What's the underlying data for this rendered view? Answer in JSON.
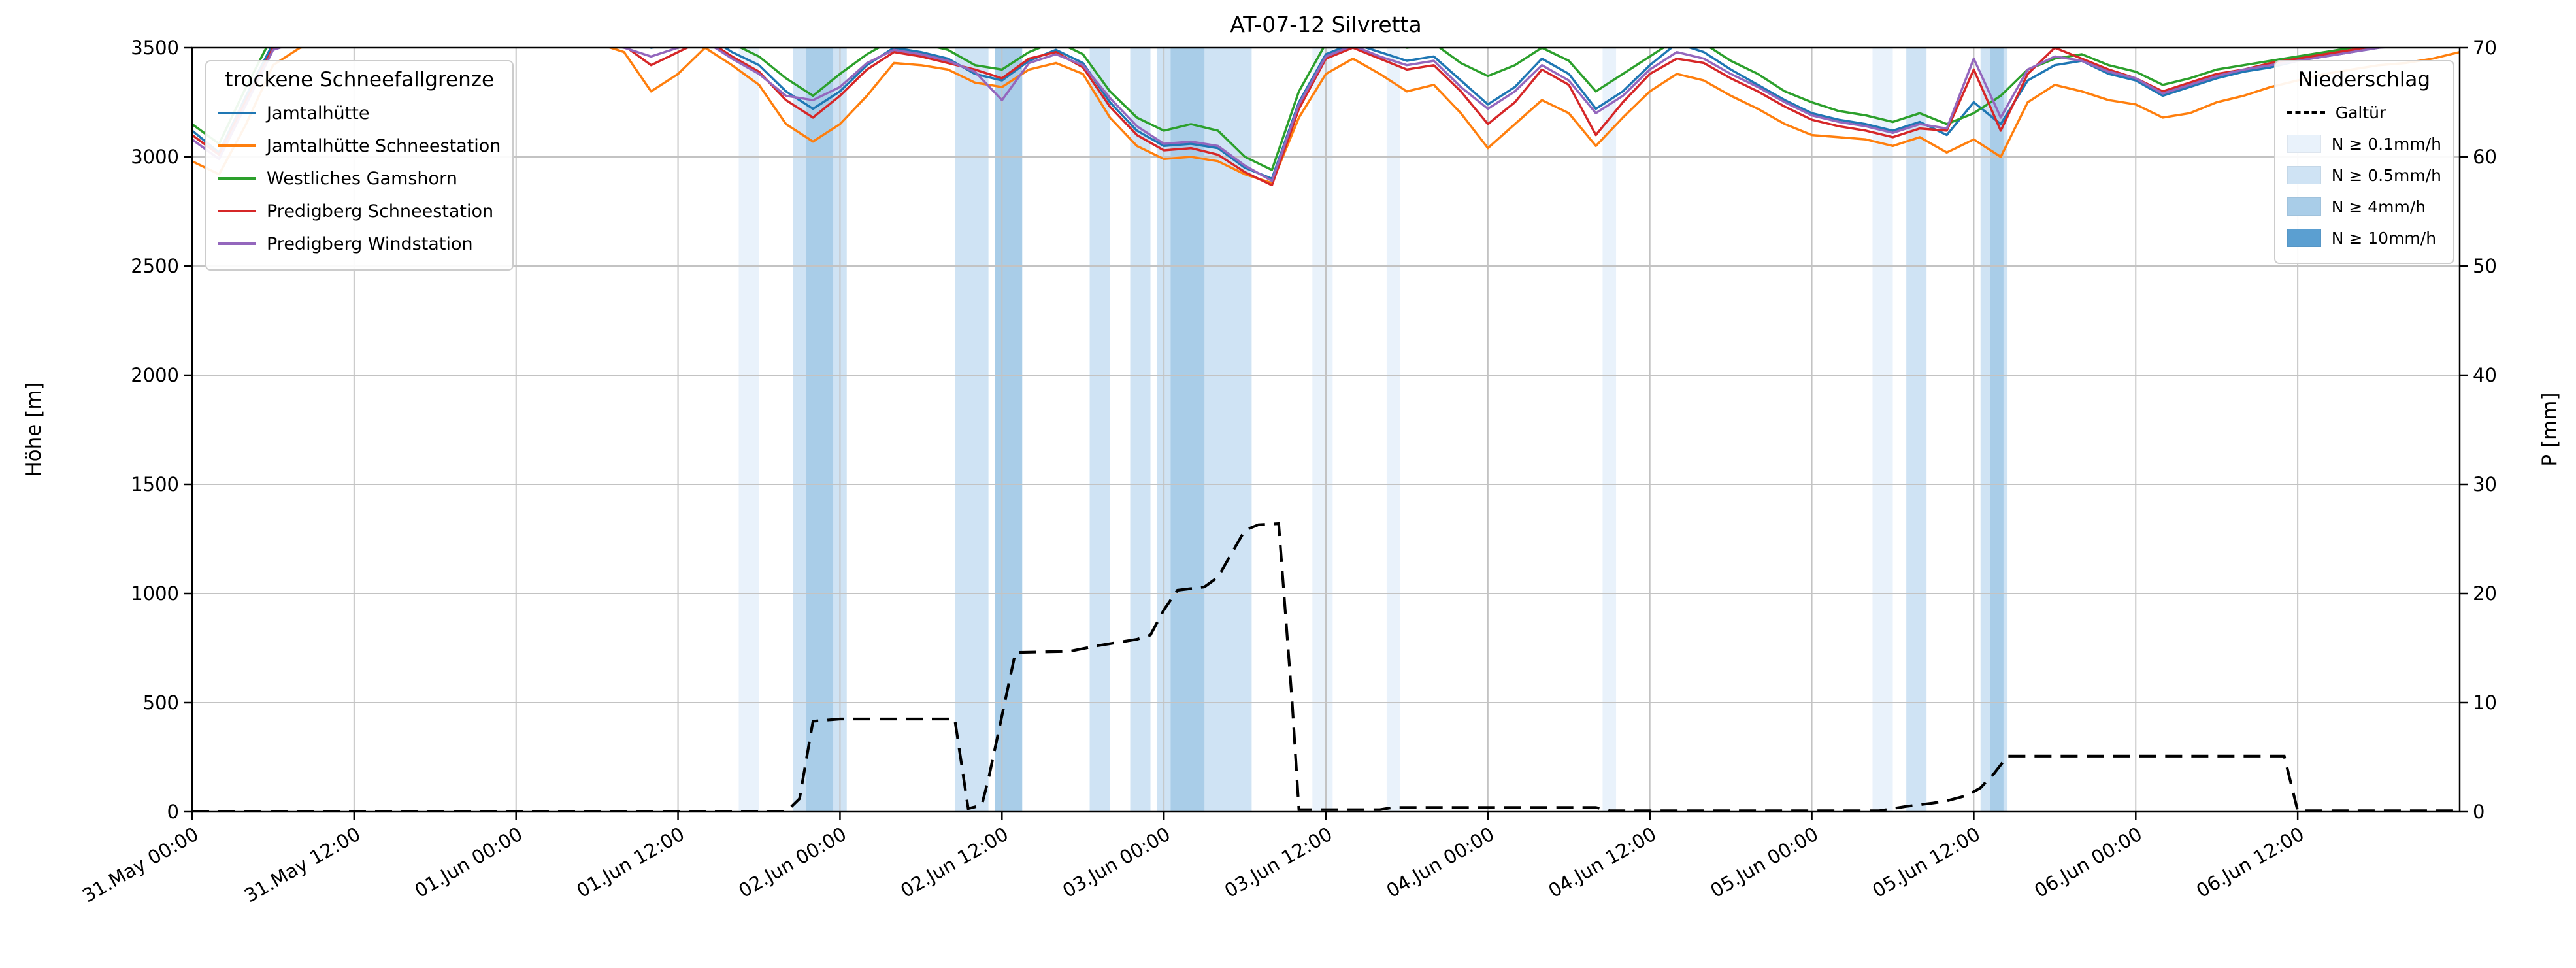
{
  "title": "AT-07-12 Silvretta",
  "axes": {
    "y_left_label": "Höhe [m]",
    "y_right_label": "P [mm]",
    "y_left_ticks": [
      0,
      500,
      1000,
      1500,
      2000,
      2500,
      3000,
      3500
    ],
    "y_right_ticks": [
      0,
      10,
      20,
      30,
      40,
      50,
      60,
      70
    ],
    "x_tick_hours": [
      0,
      12,
      24,
      36,
      48,
      60,
      72,
      84,
      96,
      108,
      120,
      132,
      144,
      156
    ],
    "x_tick_labels": [
      "31.May 00:00",
      "31.May 12:00",
      "01.Jun 00:00",
      "01.Jun 12:00",
      "02.Jun 00:00",
      "02.Jun 12:00",
      "03.Jun 00:00",
      "03.Jun 12:00",
      "04.Jun 00:00",
      "04.Jun 12:00",
      "05.Jun 00:00",
      "05.Jun 12:00",
      "06.Jun 00:00",
      "06.Jun 12:00"
    ]
  },
  "legend_left": {
    "title": "trockene Schneefallgrenze"
  },
  "legend_right": {
    "title": "Niederschlag",
    "line_label": "Galtür"
  },
  "chart_data": {
    "type": "line",
    "title": "AT-07-12 Silvretta",
    "xlabel": "",
    "ylabel_left": "Höhe [m]",
    "ylabel_right": "P [mm]",
    "x_unit": "hours since 31.May 00:00",
    "xlim_hours": [
      0,
      168
    ],
    "ylim_left": [
      0,
      3500
    ],
    "ylim_right": [
      0,
      70
    ],
    "grid": true,
    "x_step": 2,
    "series": [
      {
        "name": "Jamtalhütte",
        "color": "#1f77b4",
        "values": [
          3120,
          3020,
          3280,
          3520,
          3560,
          3600,
          3580,
          3620,
          3650,
          3600,
          3630,
          3580,
          3610,
          3640,
          3590,
          3560,
          3540,
          3500,
          3520,
          3560,
          3480,
          3420,
          3300,
          3220,
          3300,
          3420,
          3500,
          3480,
          3450,
          3380,
          3350,
          3440,
          3490,
          3430,
          3250,
          3120,
          3050,
          3060,
          3040,
          2950,
          2900,
          3250,
          3470,
          3520,
          3480,
          3440,
          3460,
          3350,
          3240,
          3320,
          3450,
          3380,
          3220,
          3300,
          3420,
          3520,
          3480,
          3400,
          3330,
          3260,
          3200,
          3170,
          3150,
          3120,
          3160,
          3100,
          3250,
          3150,
          3350,
          3420,
          3440,
          3380,
          3350,
          3280,
          3320,
          3360,
          3390,
          3410,
          3440,
          3460,
          3480,
          3500,
          3540,
          3560,
          3600
        ]
      },
      {
        "name": "Jamtalhütte Schneestation",
        "color": "#ff7f0e",
        "values": [
          2980,
          2920,
          3150,
          3420,
          3500,
          3530,
          3560,
          3540,
          3580,
          3550,
          3590,
          3540,
          3570,
          3600,
          3550,
          3520,
          3480,
          3300,
          3380,
          3500,
          3420,
          3330,
          3150,
          3070,
          3150,
          3280,
          3430,
          3420,
          3400,
          3340,
          3320,
          3400,
          3430,
          3380,
          3180,
          3050,
          2990,
          3000,
          2980,
          2920,
          2880,
          3180,
          3380,
          3450,
          3380,
          3300,
          3330,
          3200,
          3040,
          3150,
          3260,
          3200,
          3050,
          3180,
          3300,
          3380,
          3350,
          3280,
          3220,
          3150,
          3100,
          3090,
          3080,
          3050,
          3090,
          3020,
          3080,
          3000,
          3250,
          3330,
          3300,
          3260,
          3240,
          3180,
          3200,
          3250,
          3280,
          3320,
          3350,
          3380,
          3400,
          3420,
          3430,
          3450,
          3480
        ]
      },
      {
        "name": "Westliches Gamshorn",
        "color": "#2ca02c",
        "values": [
          3150,
          3060,
          3320,
          3560,
          3600,
          3640,
          3620,
          3660,
          3680,
          3640,
          3660,
          3620,
          3650,
          3670,
          3630,
          3600,
          3570,
          3540,
          3560,
          3590,
          3520,
          3460,
          3360,
          3280,
          3380,
          3470,
          3540,
          3520,
          3490,
          3420,
          3400,
          3480,
          3530,
          3470,
          3300,
          3180,
          3120,
          3150,
          3120,
          3000,
          2940,
          3300,
          3520,
          3570,
          3540,
          3500,
          3520,
          3430,
          3370,
          3420,
          3500,
          3440,
          3300,
          3380,
          3460,
          3540,
          3520,
          3440,
          3380,
          3300,
          3250,
          3210,
          3190,
          3160,
          3200,
          3150,
          3200,
          3280,
          3400,
          3450,
          3470,
          3420,
          3390,
          3330,
          3360,
          3400,
          3420,
          3440,
          3460,
          3480,
          3500,
          3520,
          3540,
          3580,
          3620
        ]
      },
      {
        "name": "Predigberg Schneestation",
        "color": "#d62728",
        "values": [
          3100,
          3010,
          3260,
          3500,
          3540,
          3580,
          3560,
          3600,
          3630,
          3590,
          3610,
          3570,
          3590,
          3620,
          3580,
          3540,
          3510,
          3420,
          3480,
          3540,
          3460,
          3390,
          3260,
          3180,
          3280,
          3400,
          3480,
          3460,
          3430,
          3400,
          3360,
          3450,
          3480,
          3410,
          3230,
          3100,
          3030,
          3040,
          3010,
          2930,
          2870,
          3220,
          3450,
          3500,
          3450,
          3400,
          3420,
          3300,
          3150,
          3250,
          3400,
          3330,
          3100,
          3250,
          3380,
          3450,
          3430,
          3360,
          3300,
          3230,
          3170,
          3140,
          3120,
          3090,
          3130,
          3120,
          3400,
          3120,
          3380,
          3500,
          3450,
          3400,
          3360,
          3300,
          3340,
          3380,
          3400,
          3430,
          3450,
          3470,
          3490,
          3510,
          3520,
          3550,
          3580
        ]
      },
      {
        "name": "Predigberg Windstation",
        "color": "#9467bd",
        "values": [
          3080,
          2990,
          3240,
          3490,
          3530,
          3570,
          3550,
          3590,
          3620,
          3580,
          3600,
          3560,
          3580,
          3610,
          3570,
          3530,
          3500,
          3460,
          3500,
          3530,
          3450,
          3380,
          3280,
          3260,
          3320,
          3430,
          3490,
          3470,
          3440,
          3390,
          3260,
          3430,
          3470,
          3420,
          3270,
          3140,
          3060,
          3070,
          3050,
          2960,
          2890,
          3240,
          3460,
          3510,
          3460,
          3420,
          3440,
          3320,
          3220,
          3300,
          3420,
          3350,
          3200,
          3280,
          3400,
          3480,
          3450,
          3380,
          3320,
          3250,
          3190,
          3160,
          3140,
          3110,
          3150,
          3130,
          3450,
          3180,
          3400,
          3460,
          3440,
          3390,
          3360,
          3290,
          3330,
          3370,
          3400,
          3420,
          3440,
          3460,
          3480,
          3500,
          3510,
          3540,
          3570
        ]
      }
    ],
    "precip_line": {
      "name": "Galtür",
      "color": "#000000",
      "dash": true,
      "axis": "right",
      "points": [
        [
          0,
          0
        ],
        [
          44,
          0
        ],
        [
          45,
          1.2
        ],
        [
          46,
          8.3
        ],
        [
          48,
          8.5
        ],
        [
          56.5,
          8.5
        ],
        [
          57.5,
          0.3
        ],
        [
          58.5,
          0.6
        ],
        [
          59,
          3
        ],
        [
          61,
          14.6
        ],
        [
          65,
          14.7
        ],
        [
          67,
          15.2
        ],
        [
          70,
          15.8
        ],
        [
          71,
          16.2
        ],
        [
          72,
          18.5
        ],
        [
          73,
          20.3
        ],
        [
          75,
          20.6
        ],
        [
          76,
          21.5
        ],
        [
          78,
          25.8
        ],
        [
          79,
          26.3
        ],
        [
          80.5,
          26.4
        ],
        [
          81.5,
          10
        ],
        [
          82,
          0.2
        ],
        [
          88,
          0.2
        ],
        [
          89,
          0.4
        ],
        [
          104,
          0.4
        ],
        [
          105,
          0.1
        ],
        [
          125,
          0.1
        ],
        [
          127,
          0.5
        ],
        [
          129,
          0.8
        ],
        [
          130,
          1
        ],
        [
          131.5,
          1.5
        ],
        [
          132.5,
          2.2
        ],
        [
          133.5,
          3.5
        ],
        [
          134.5,
          5.1
        ],
        [
          155,
          5.1
        ],
        [
          156,
          0.1
        ],
        [
          168,
          0.1
        ]
      ]
    },
    "band_levels": [
      {
        "label": "N ≥ 0.1mm/h",
        "color": "#e9f2fb"
      },
      {
        "label": "N ≥ 0.5mm/h",
        "color": "#cfe3f4"
      },
      {
        "label": "N ≥ 4mm/h",
        "color": "#a9cde8"
      },
      {
        "label": "N ≥ 10mm/h",
        "color": "#5b9fd1"
      }
    ],
    "precip_bands": [
      {
        "start": 40.5,
        "end": 42,
        "level": 1
      },
      {
        "start": 44.5,
        "end": 45.5,
        "level": 2
      },
      {
        "start": 45.5,
        "end": 47.5,
        "level": 3
      },
      {
        "start": 47.5,
        "end": 48.5,
        "level": 2
      },
      {
        "start": 56.5,
        "end": 59,
        "level": 2
      },
      {
        "start": 59.5,
        "end": 61.5,
        "level": 3
      },
      {
        "start": 66.5,
        "end": 68,
        "level": 2
      },
      {
        "start": 69.5,
        "end": 71,
        "level": 2
      },
      {
        "start": 71.5,
        "end": 78.5,
        "level": 2
      },
      {
        "start": 72.5,
        "end": 75,
        "level": 3
      },
      {
        "start": 83,
        "end": 84.5,
        "level": 1
      },
      {
        "start": 88.5,
        "end": 89.5,
        "level": 1
      },
      {
        "start": 104.5,
        "end": 105.5,
        "level": 1
      },
      {
        "start": 124.5,
        "end": 126,
        "level": 1
      },
      {
        "start": 127,
        "end": 128.5,
        "level": 2
      },
      {
        "start": 132.5,
        "end": 134.5,
        "level": 2
      },
      {
        "start": 133.2,
        "end": 134.2,
        "level": 3
      }
    ]
  }
}
